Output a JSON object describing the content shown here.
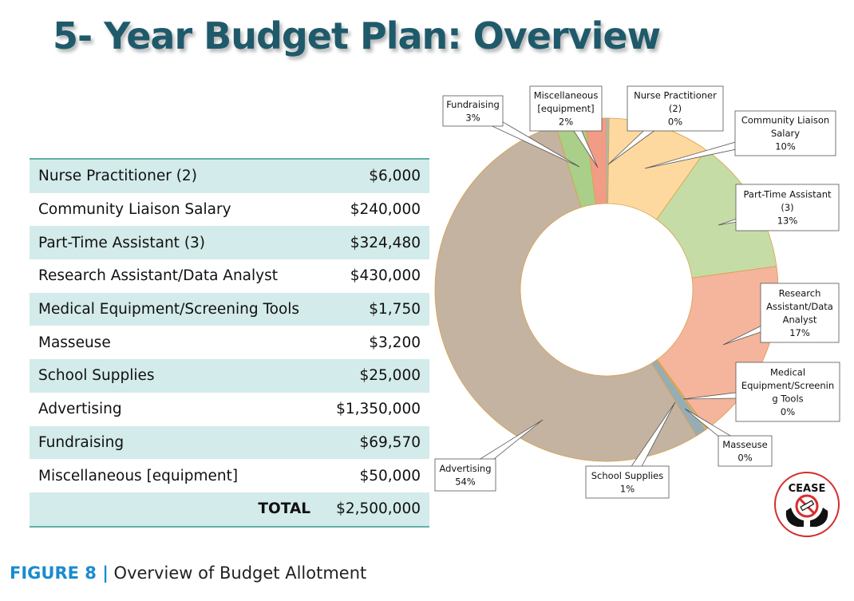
{
  "slide": {
    "title": "5- Year Budget Plan: Overview",
    "caption_figure": "FIGURE 8 |",
    "caption_text": " Overview of Budget Allotment",
    "logo_text": "CEASE"
  },
  "budget_table": {
    "rows": [
      {
        "label": "Nurse Practitioner (2)",
        "amount": "$6,000"
      },
      {
        "label": "Community Liaison Salary",
        "amount": "$240,000"
      },
      {
        "label": "Part-Time Assistant (3)",
        "amount": "$324,480"
      },
      {
        "label": "Research Assistant/Data Analyst",
        "amount": "$430,000"
      },
      {
        "label": "Medical Equipment/Screening Tools",
        "amount": "$1,750"
      },
      {
        "label": "Masseuse",
        "amount": "$3,200"
      },
      {
        "label": "School Supplies",
        "amount": "$25,000"
      },
      {
        "label": "Advertising",
        "amount": "$1,350,000"
      },
      {
        "label": "Fundraising",
        "amount": "$69,570"
      },
      {
        "label": "Miscellaneous [equipment]",
        "amount": "$50,000"
      }
    ],
    "total_label": "TOTAL",
    "total_amount": "$2,500,000"
  },
  "chart_data": {
    "type": "pie",
    "subtype": "donut",
    "title": "",
    "slices": [
      {
        "name": "Nurse Practitioner (2)",
        "value": 6000,
        "label_lines": [
          "Nurse Practitioner",
          "(2)",
          "0%"
        ],
        "color": "#8fc3d6"
      },
      {
        "name": "Community Liaison Salary",
        "value": 240000,
        "label_lines": [
          "Community Liaison",
          "Salary",
          "10%"
        ],
        "color": "#fdd9a0"
      },
      {
        "name": "Part-Time Assistant (3)",
        "value": 324480,
        "label_lines": [
          "Part-Time Assistant",
          "(3)",
          "13%"
        ],
        "color": "#c6dca6"
      },
      {
        "name": "Research Assistant/Data Analyst",
        "value": 430000,
        "label_lines": [
          "Research",
          "Assistant/Data",
          "Analyst",
          "17%"
        ],
        "color": "#f5b49c"
      },
      {
        "name": "Medical Equipment/Screening Tools",
        "value": 1750,
        "label_lines": [
          "Medical",
          "Equipment/Screenin",
          "g Tools",
          "0%"
        ],
        "color": "#9eb8d8"
      },
      {
        "name": "Masseuse",
        "value": 3200,
        "label_lines": [
          "Masseuse",
          "0%"
        ],
        "color": "#b9c4d0"
      },
      {
        "name": "School Supplies",
        "value": 25000,
        "label_lines": [
          "School Supplies",
          "1%"
        ],
        "color": "#97adb6"
      },
      {
        "name": "Advertising",
        "value": 1350000,
        "label_lines": [
          "Advertising",
          "54%"
        ],
        "color": "#c4b3a0"
      },
      {
        "name": "Fundraising",
        "value": 69570,
        "label_lines": [
          "Fundraising",
          "3%"
        ],
        "color": "#a9cf88"
      },
      {
        "name": "Miscellaneous [equipment]",
        "value": 50000,
        "label_lines": [
          "Miscellaneous",
          "[equipment]",
          "2%"
        ],
        "color": "#f29c86"
      }
    ]
  }
}
